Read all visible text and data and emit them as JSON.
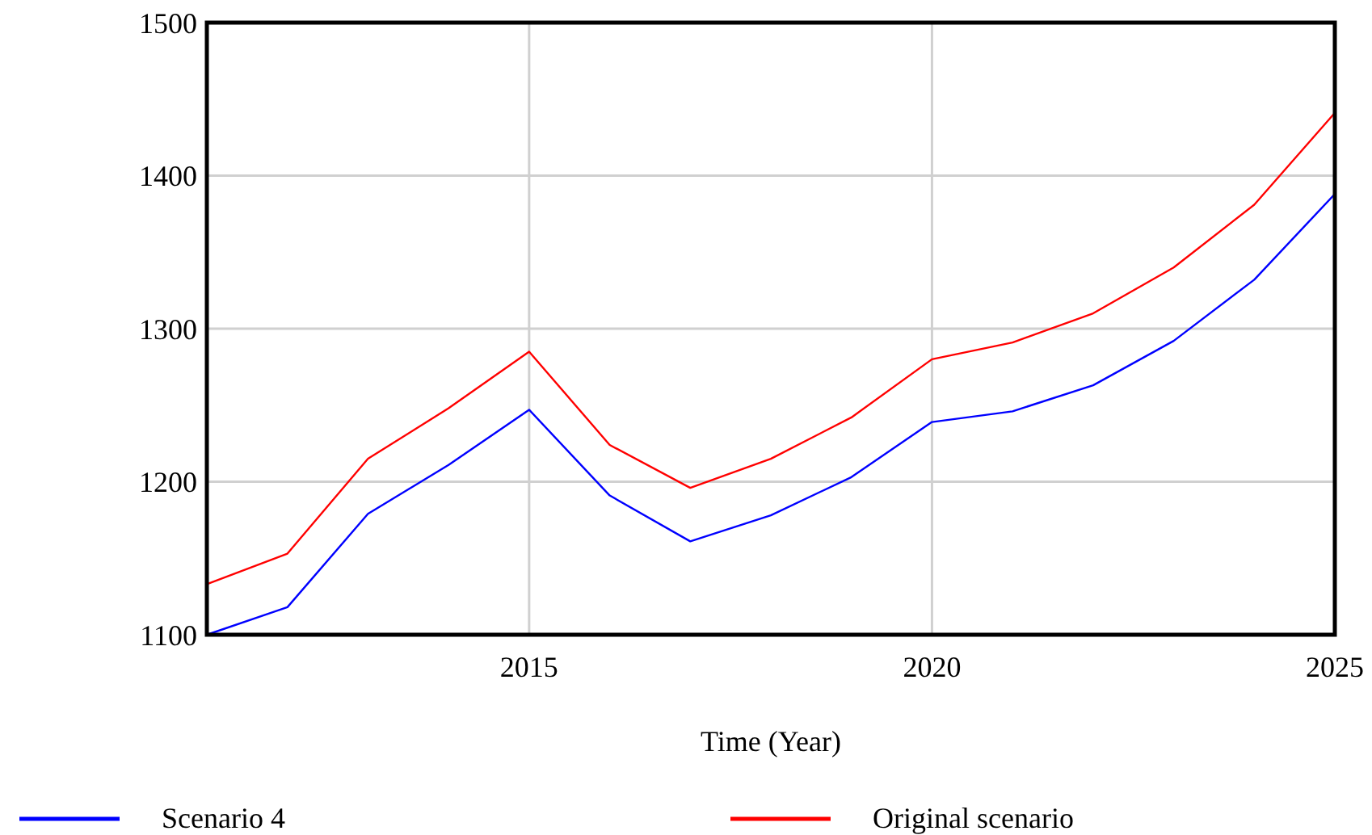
{
  "chart_data": {
    "type": "line",
    "xlabel": "Time (Year)",
    "x": [
      2011,
      2012,
      2013,
      2014,
      2015,
      2016,
      2017,
      2018,
      2019,
      2020,
      2021,
      2022,
      2023,
      2024,
      2025
    ],
    "series": [
      {
        "name": "Scenario 4",
        "color": "#0000ff",
        "values": [
          1100,
          1118,
          1179,
          1211,
          1247,
          1191,
          1161,
          1178,
          1203,
          1239,
          1246,
          1263,
          1292,
          1332,
          1388
        ]
      },
      {
        "name": "Original scenario",
        "color": "#ff0000",
        "values": [
          1133,
          1153,
          1215,
          1248,
          1285,
          1224,
          1196,
          1215,
          1242,
          1280,
          1291,
          1310,
          1340,
          1381,
          1441
        ]
      }
    ],
    "xlim": [
      2011,
      2025
    ],
    "xticks": [
      2015,
      2020,
      2025
    ],
    "ylim": [
      1100,
      1500
    ],
    "yticks": [
      1100,
      1200,
      1300,
      1400,
      1500
    ],
    "grid": true,
    "legend": "bottom",
    "marker": "none",
    "line_style": "solid"
  }
}
